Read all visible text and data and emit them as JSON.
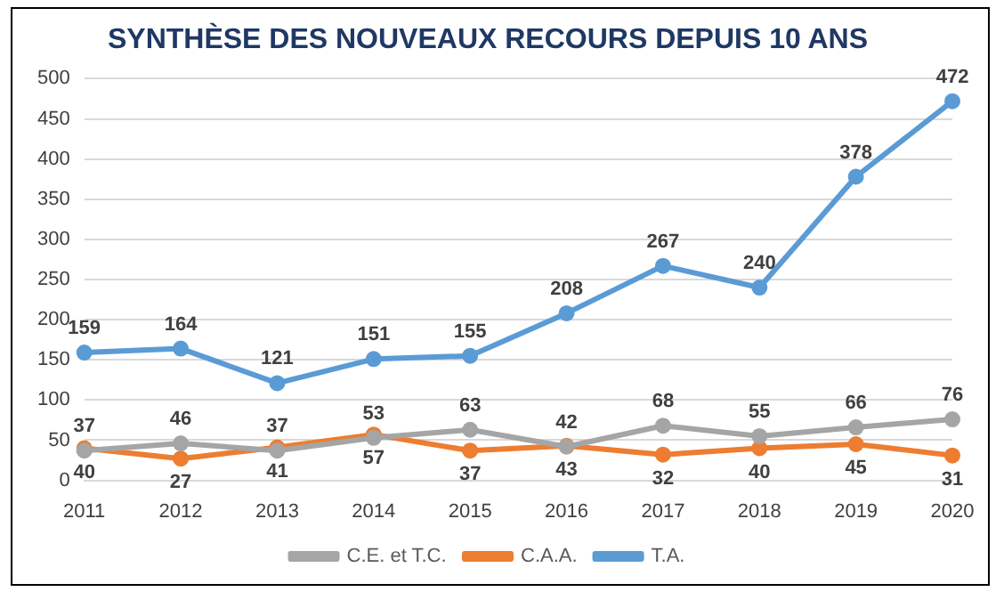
{
  "chart_data": {
    "type": "line",
    "title": "SYNTHÈSE DES NOUVEAUX RECOURS DEPUIS 10 ANS",
    "categories": [
      "2011",
      "2012",
      "2013",
      "2014",
      "2015",
      "2016",
      "2017",
      "2018",
      "2019",
      "2020"
    ],
    "series": [
      {
        "name": "C.E. et T.C.",
        "color": "#a5a5a5",
        "values": [
          37,
          46,
          37,
          53,
          63,
          42,
          68,
          55,
          66,
          76
        ]
      },
      {
        "name": "C.A.A.",
        "color": "#ed7d31",
        "values": [
          40,
          27,
          41,
          57,
          37,
          43,
          32,
          40,
          45,
          31
        ]
      },
      {
        "name": "T.A.",
        "color": "#5b9bd5",
        "values": [
          159,
          164,
          121,
          151,
          155,
          208,
          267,
          240,
          378,
          472
        ]
      }
    ],
    "ylim": [
      0,
      500
    ],
    "yticks": [
      0,
      50,
      100,
      150,
      200,
      250,
      300,
      350,
      400,
      450,
      500
    ],
    "grid": "y",
    "legend": "bottom",
    "marker": "circle",
    "line_style": "solid",
    "data_labels": true
  }
}
